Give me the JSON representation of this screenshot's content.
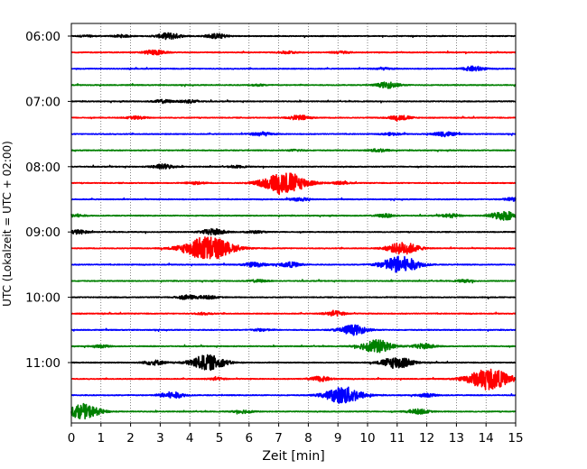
{
  "chart_data": {
    "type": "line",
    "title": "",
    "xlabel": "Zeit  [min]",
    "ylabel": "UTC (Lokalzeit = UTC + 02:00)",
    "xlim": [
      0,
      15
    ],
    "x_ticks": [
      0,
      1,
      2,
      3,
      4,
      5,
      6,
      7,
      8,
      9,
      10,
      11,
      12,
      13,
      14,
      15
    ],
    "x_tick_labels": [
      "0",
      "1",
      "2",
      "3",
      "4",
      "5",
      "6",
      "7",
      "8",
      "9",
      "10",
      "11",
      "12",
      "13",
      "14",
      "15"
    ],
    "y_tick_labels": [
      "06:00",
      "07:00",
      "08:00",
      "09:00",
      "10:00",
      "11:00"
    ],
    "vertical_grid": "dotted",
    "color_cycle": [
      "#000000",
      "#ff0000",
      "#0000ff",
      "#008000"
    ],
    "series": [
      {
        "values": [
          [
            0.5,
            0.04
          ],
          [
            1.7,
            0.06
          ],
          [
            3.3,
            0.16
          ],
          [
            4.9,
            0.12
          ]
        ]
      },
      {
        "values": [
          [
            2.8,
            0.12
          ],
          [
            7.3,
            0.06
          ],
          [
            9.1,
            0.06
          ]
        ]
      },
      {
        "values": [
          [
            13.6,
            0.12
          ],
          [
            10.5,
            0.05
          ]
        ]
      },
      {
        "values": [
          [
            10.7,
            0.15
          ],
          [
            6.3,
            0.04
          ]
        ]
      },
      {
        "values": [
          [
            3.1,
            0.08
          ],
          [
            4.0,
            0.08
          ]
        ]
      },
      {
        "values": [
          [
            2.2,
            0.07
          ],
          [
            7.7,
            0.12
          ],
          [
            11.1,
            0.12
          ]
        ]
      },
      {
        "values": [
          [
            6.4,
            0.1
          ],
          [
            10.8,
            0.06
          ],
          [
            12.6,
            0.12
          ]
        ]
      },
      {
        "values": [
          [
            10.4,
            0.08
          ],
          [
            7.6,
            0.04
          ]
        ]
      },
      {
        "values": [
          [
            3.1,
            0.12
          ],
          [
            5.6,
            0.05
          ]
        ]
      },
      {
        "values": [
          [
            7.2,
            0.55
          ],
          [
            4.2,
            0.06
          ],
          [
            9.1,
            0.06
          ]
        ]
      },
      {
        "values": [
          [
            7.7,
            0.08
          ],
          [
            14.9,
            0.08
          ]
        ]
      },
      {
        "values": [
          [
            14.6,
            0.22
          ],
          [
            12.8,
            0.08
          ],
          [
            0.1,
            0.08
          ],
          [
            10.6,
            0.08
          ]
        ]
      },
      {
        "values": [
          [
            0.2,
            0.1
          ],
          [
            4.8,
            0.16
          ],
          [
            6.2,
            0.06
          ]
        ]
      },
      {
        "values": [
          [
            4.6,
            0.62
          ],
          [
            11.2,
            0.3
          ]
        ]
      },
      {
        "values": [
          [
            11.1,
            0.42
          ],
          [
            6.2,
            0.12
          ],
          [
            7.4,
            0.12
          ]
        ]
      },
      {
        "values": [
          [
            6.3,
            0.06
          ],
          [
            13.3,
            0.06
          ]
        ]
      },
      {
        "values": [
          [
            3.9,
            0.1
          ],
          [
            4.6,
            0.08
          ]
        ]
      },
      {
        "values": [
          [
            4.5,
            0.05
          ],
          [
            8.9,
            0.12
          ]
        ]
      },
      {
        "values": [
          [
            9.5,
            0.25
          ],
          [
            6.4,
            0.06
          ]
        ]
      },
      {
        "values": [
          [
            10.3,
            0.32
          ],
          [
            11.9,
            0.13
          ],
          [
            1.0,
            0.06
          ]
        ]
      },
      {
        "values": [
          [
            4.6,
            0.38
          ],
          [
            2.8,
            0.12
          ],
          [
            11.0,
            0.3
          ]
        ]
      },
      {
        "values": [
          [
            8.4,
            0.12
          ],
          [
            14.1,
            0.52
          ],
          [
            4.9,
            0.06
          ]
        ]
      },
      {
        "values": [
          [
            9.2,
            0.42
          ],
          [
            3.4,
            0.16
          ],
          [
            12.0,
            0.08
          ]
        ]
      },
      {
        "values": [
          [
            0.4,
            0.35
          ],
          [
            11.7,
            0.12
          ],
          [
            5.8,
            0.08
          ]
        ]
      }
    ]
  }
}
